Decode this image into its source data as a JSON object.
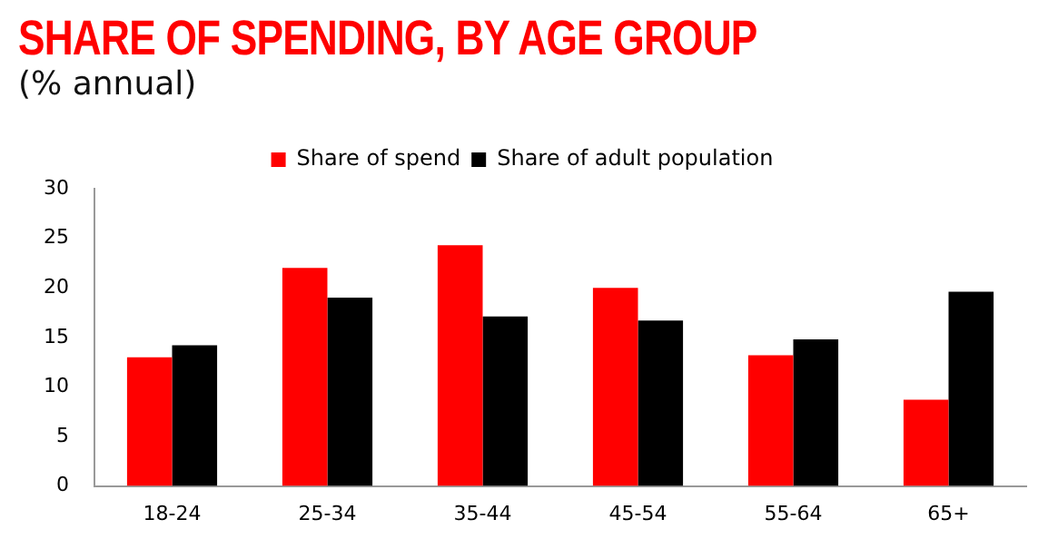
{
  "chart_data": {
    "type": "bar",
    "title": "SHARE OF SPENDING, BY AGE GROUP",
    "subtitle": "(% annual)",
    "categories": [
      "18-24",
      "25-34",
      "35-44",
      "45-54",
      "55-64",
      "65+"
    ],
    "series": [
      {
        "name": "Share of spend",
        "color": "#ff0000",
        "values": [
          13,
          22,
          24.3,
          20,
          13.2,
          8.7
        ]
      },
      {
        "name": "Share of adult population",
        "color": "#000000",
        "values": [
          14.2,
          19,
          17.1,
          16.7,
          14.8,
          19.6
        ]
      }
    ],
    "ylim": [
      0,
      30
    ],
    "yticks": [
      0,
      5,
      10,
      15,
      20,
      25,
      30
    ],
    "grid": false,
    "legend": "top"
  }
}
